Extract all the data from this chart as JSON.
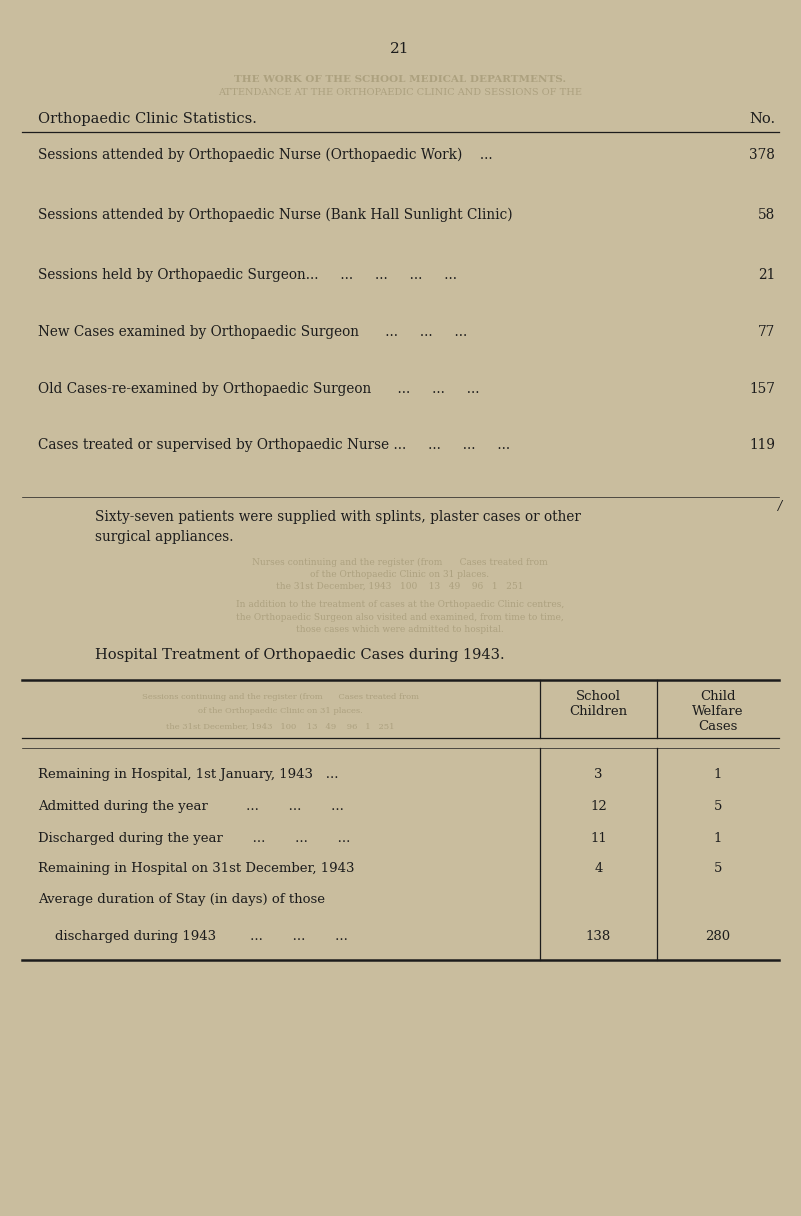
{
  "bg_color": "#c9bd9e",
  "text_color": "#1c1c1c",
  "page_number": "21",
  "section1_title": "Orthopaedic Clinic Statistics.",
  "section1_col_header": "No.",
  "section1_rows": [
    {
      "label": "Sessions attended by Orthopaedic Nurse (Orthopaedic Work)    ...",
      "value": "378"
    },
    {
      "label": "Sessions attended by Orthopaedic Nurse (Bank Hall Sunlight Clinic)",
      "value": "58"
    },
    {
      "label": "Sessions held by Orthopaedic Surgeon...     ...     ...     ...     ...",
      "value": "21"
    },
    {
      "label": "New Cases examined by Orthopaedic Surgeon      ...     ...     ...",
      "value": "77"
    },
    {
      "label": "Old Cases‐re-examined by Orthopaedic Surgeon      ...     ...     ...",
      "value": "157"
    },
    {
      "label": "Cases treated or supervised by Orthopaedic Nurse ...     ...     ...     ...",
      "value": "119"
    }
  ],
  "sixty_seven_text_line1": "Sixty-seven patients were supplied with splints, plaster cases or other",
  "sixty_seven_text_line2": "surgical appliances.",
  "section2_title": "Hospital Treatment of Orthopaedic Cases during 1943.",
  "section2_col1_line1": "School",
  "section2_col1_line2": "Children",
  "section2_col2_line1": "Child",
  "section2_col2_line2": "Welfare",
  "section2_col2_line3": "Cases",
  "section2_rows": [
    {
      "label": "Remaining in Hospital, 1st January, 1943   ...",
      "col1": "3",
      "col2": "1"
    },
    {
      "label": "Admitted during the year         ...       ...       ...",
      "col1": "12",
      "col2": "5"
    },
    {
      "label": "Discharged during the year       ...       ...       ...",
      "col1": "11",
      "col2": "1"
    },
    {
      "label": "Remaining in Hospital on 31st December, 1943",
      "col1": "4",
      "col2": "5"
    },
    {
      "label": "Average duration of Stay (in days) of those",
      "col1": null,
      "col2": null
    },
    {
      "label": "    discharged during 1943        ...       ...       ...",
      "col1": "138",
      "col2": "280"
    }
  ],
  "ghost_lines_top": [
    "THE WORK OF THE SCHOOL MEDICAL DEPARTMENTS.",
    "ATTENDANCE AT THE ORTHOPAEDIC CLINIC AND SESSIONS OF THE"
  ],
  "ghost_lines_mid1": [
    "Nurses continuing and the register (from      Cases treated from",
    "of the Orthopaedic Clinic on 31 places.",
    "the 31st December, 1943   100    13   49    96   1   251"
  ],
  "ghost_lines_mid2": [
    "In addition to the treatment of cases at the Orthopaedic Clinic centres,",
    "the Orthopaedic Surgeon also visited and examined, from time to time,",
    "those cases which were admitted to hospital."
  ],
  "ghost_lines_s2_bg": [
    "Sessions continuing and the register (from      Cases treated from",
    "of the Orthopaedic Clinic on 31 places.",
    "the 31st December, 1943   100    13   49    96   1   251"
  ]
}
